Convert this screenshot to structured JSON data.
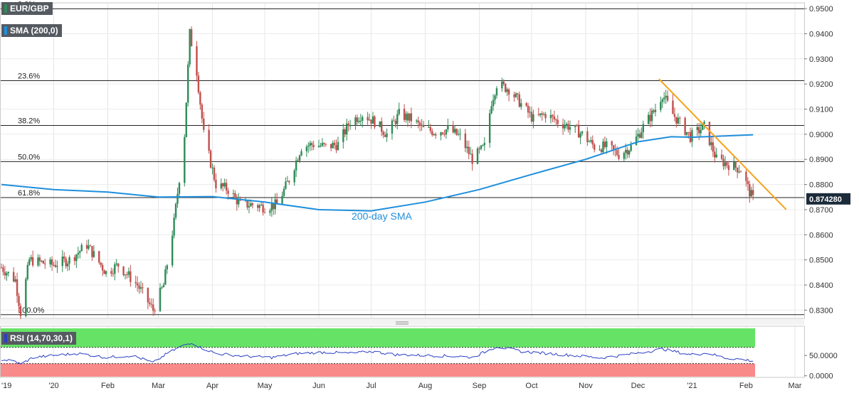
{
  "colors": {
    "bull": "#2e8b57",
    "bear": "#c0504d",
    "sma": "#1f8fdc",
    "trendline": "#f7a21b",
    "fib_line": "#222222",
    "rsi_line": "#2a3fc4",
    "rsi_overbought": "#66e366",
    "rsi_oversold": "#f98a8a",
    "price_tag": "#1c2b3a"
  },
  "chart_data": [
    {
      "type": "candlestick",
      "title": "EUR/GBP",
      "legend": [
        {
          "label": "EUR/GBP",
          "swatch": "#2e8b57"
        },
        {
          "label": "SMA (200,0)",
          "swatch": "#1f8fdc"
        }
      ],
      "ylim": [
        0.827,
        0.952
      ],
      "y_ticks": [
        "0.9500",
        "0.9400",
        "0.9300",
        "0.9200",
        "0.9100",
        "0.9000",
        "0.8900",
        "0.8800",
        "0.8700",
        "0.8600",
        "0.8500",
        "0.8400",
        "0.8300"
      ],
      "x_ticks": [
        "'19",
        "'20",
        "Feb",
        "Mar",
        "Apr",
        "May",
        "Jun",
        "Jul",
        "Aug",
        "Sep",
        "Oct",
        "Nov",
        "Dec",
        "'21",
        "Feb",
        "Mar"
      ],
      "last_price": "0.874280",
      "fibonacci": [
        {
          "label": "0.0%",
          "value": 0.9499
        },
        {
          "label": "23.6%",
          "value": 0.9213
        },
        {
          "label": "38.2%",
          "value": 0.9035
        },
        {
          "label": "50.0%",
          "value": 0.8891
        },
        {
          "label": "61.8%",
          "value": 0.8748
        },
        {
          "label": "100.0%",
          "value": 0.8282
        }
      ],
      "annotation": "200-day SMA",
      "trendline": [
        [
          "2020-12-13",
          0.922
        ],
        [
          "2021-02-24",
          0.87
        ]
      ],
      "close_path": [
        [
          "2019-12-02",
          0.847
        ],
        [
          "2019-12-10",
          0.842
        ],
        [
          "2019-12-13",
          0.829
        ],
        [
          "2019-12-18",
          0.85
        ],
        [
          "2019-12-31",
          0.848
        ],
        [
          "2020-01-10",
          0.85
        ],
        [
          "2020-01-20",
          0.856
        ],
        [
          "2020-01-31",
          0.845
        ],
        [
          "2020-02-07",
          0.848
        ],
        [
          "2020-02-18",
          0.84
        ],
        [
          "2020-02-27",
          0.83
        ],
        [
          "2020-03-04",
          0.84
        ],
        [
          "2020-03-10",
          0.865
        ],
        [
          "2020-03-16",
          0.9
        ],
        [
          "2020-03-19",
          0.94
        ],
        [
          "2020-03-23",
          0.925
        ],
        [
          "2020-03-27",
          0.9
        ],
        [
          "2020-04-03",
          0.88
        ],
        [
          "2020-04-10",
          0.878
        ],
        [
          "2020-04-17",
          0.872
        ],
        [
          "2020-04-24",
          0.872
        ],
        [
          "2020-05-01",
          0.871
        ],
        [
          "2020-05-08",
          0.872
        ],
        [
          "2020-05-15",
          0.882
        ],
        [
          "2020-05-22",
          0.895
        ],
        [
          "2020-05-29",
          0.896
        ],
        [
          "2020-06-05",
          0.895
        ],
        [
          "2020-06-12",
          0.896
        ],
        [
          "2020-06-19",
          0.905
        ],
        [
          "2020-06-26",
          0.908
        ],
        [
          "2020-07-03",
          0.905
        ],
        [
          "2020-07-10",
          0.9
        ],
        [
          "2020-07-17",
          0.908
        ],
        [
          "2020-07-24",
          0.906
        ],
        [
          "2020-07-31",
          0.902
        ],
        [
          "2020-08-07",
          0.901
        ],
        [
          "2020-08-14",
          0.902
        ],
        [
          "2020-08-21",
          0.899
        ],
        [
          "2020-08-28",
          0.89
        ],
        [
          "2020-09-04",
          0.895
        ],
        [
          "2020-09-08",
          0.913
        ],
        [
          "2020-09-11",
          0.92
        ],
        [
          "2020-09-18",
          0.918
        ],
        [
          "2020-09-25",
          0.912
        ],
        [
          "2020-10-02",
          0.906
        ],
        [
          "2020-10-09",
          0.908
        ],
        [
          "2020-10-16",
          0.905
        ],
        [
          "2020-10-23",
          0.903
        ],
        [
          "2020-10-30",
          0.9
        ],
        [
          "2020-11-06",
          0.895
        ],
        [
          "2020-11-13",
          0.895
        ],
        [
          "2020-11-20",
          0.892
        ],
        [
          "2020-11-27",
          0.895
        ],
        [
          "2020-12-04",
          0.903
        ],
        [
          "2020-12-11",
          0.91
        ],
        [
          "2020-12-15",
          0.916
        ],
        [
          "2020-12-21",
          0.908
        ],
        [
          "2020-12-31",
          0.899
        ],
        [
          "2021-01-08",
          0.903
        ],
        [
          "2021-01-15",
          0.89
        ],
        [
          "2021-01-22",
          0.888
        ],
        [
          "2021-01-29",
          0.886
        ],
        [
          "2021-02-03",
          0.877
        ],
        [
          "2021-02-05",
          0.8743
        ]
      ],
      "sma_path": [
        [
          "2019-12-02",
          0.88
        ],
        [
          "2020-01-01",
          0.878
        ],
        [
          "2020-02-01",
          0.877
        ],
        [
          "2020-03-01",
          0.875
        ],
        [
          "2020-04-01",
          0.8752
        ],
        [
          "2020-05-01",
          0.873
        ],
        [
          "2020-06-01",
          0.87
        ],
        [
          "2020-07-01",
          0.8695
        ],
        [
          "2020-08-01",
          0.873
        ],
        [
          "2020-09-01",
          0.878
        ],
        [
          "2020-10-01",
          0.884
        ],
        [
          "2020-11-01",
          0.89
        ],
        [
          "2020-12-01",
          0.897
        ],
        [
          "2020-12-20",
          0.899
        ],
        [
          "2021-01-01",
          0.8988
        ],
        [
          "2021-01-15",
          0.8992
        ],
        [
          "2021-02-05",
          0.8998
        ]
      ]
    },
    {
      "type": "line",
      "title": "RSI (14,70,30,1)",
      "ylim": [
        -4,
        122
      ],
      "y_ticks": [
        "50.0000",
        "0.0000"
      ],
      "bands": {
        "overbought": 70,
        "oversold": 30
      },
      "series": [
        {
          "name": "RSI (14,70,30,1)",
          "points": [
            [
              "2019-12-02",
              40
            ],
            [
              "2019-12-10",
              35
            ],
            [
              "2019-12-13",
              28
            ],
            [
              "2019-12-20",
              45
            ],
            [
              "2020-01-01",
              50
            ],
            [
              "2020-01-15",
              55
            ],
            [
              "2020-01-31",
              45
            ],
            [
              "2020-02-15",
              50
            ],
            [
              "2020-02-27",
              32
            ],
            [
              "2020-03-06",
              55
            ],
            [
              "2020-03-13",
              70
            ],
            [
              "2020-03-20",
              82
            ],
            [
              "2020-03-25",
              70
            ],
            [
              "2020-04-03",
              55
            ],
            [
              "2020-04-20",
              48
            ],
            [
              "2020-05-05",
              45
            ],
            [
              "2020-05-20",
              55
            ],
            [
              "2020-06-05",
              58
            ],
            [
              "2020-06-20",
              55
            ],
            [
              "2020-07-01",
              60
            ],
            [
              "2020-07-15",
              52
            ],
            [
              "2020-08-01",
              50
            ],
            [
              "2020-08-20",
              48
            ],
            [
              "2020-08-28",
              45
            ],
            [
              "2020-09-11",
              72
            ],
            [
              "2020-09-25",
              60
            ],
            [
              "2020-10-10",
              55
            ],
            [
              "2020-10-25",
              50
            ],
            [
              "2020-11-10",
              44
            ],
            [
              "2020-11-25",
              52
            ],
            [
              "2020-12-10",
              62
            ],
            [
              "2020-12-15",
              66
            ],
            [
              "2020-12-31",
              52
            ],
            [
              "2021-01-10",
              56
            ],
            [
              "2021-01-20",
              44
            ],
            [
              "2021-01-31",
              40
            ],
            [
              "2021-02-05",
              36
            ]
          ]
        }
      ]
    }
  ]
}
